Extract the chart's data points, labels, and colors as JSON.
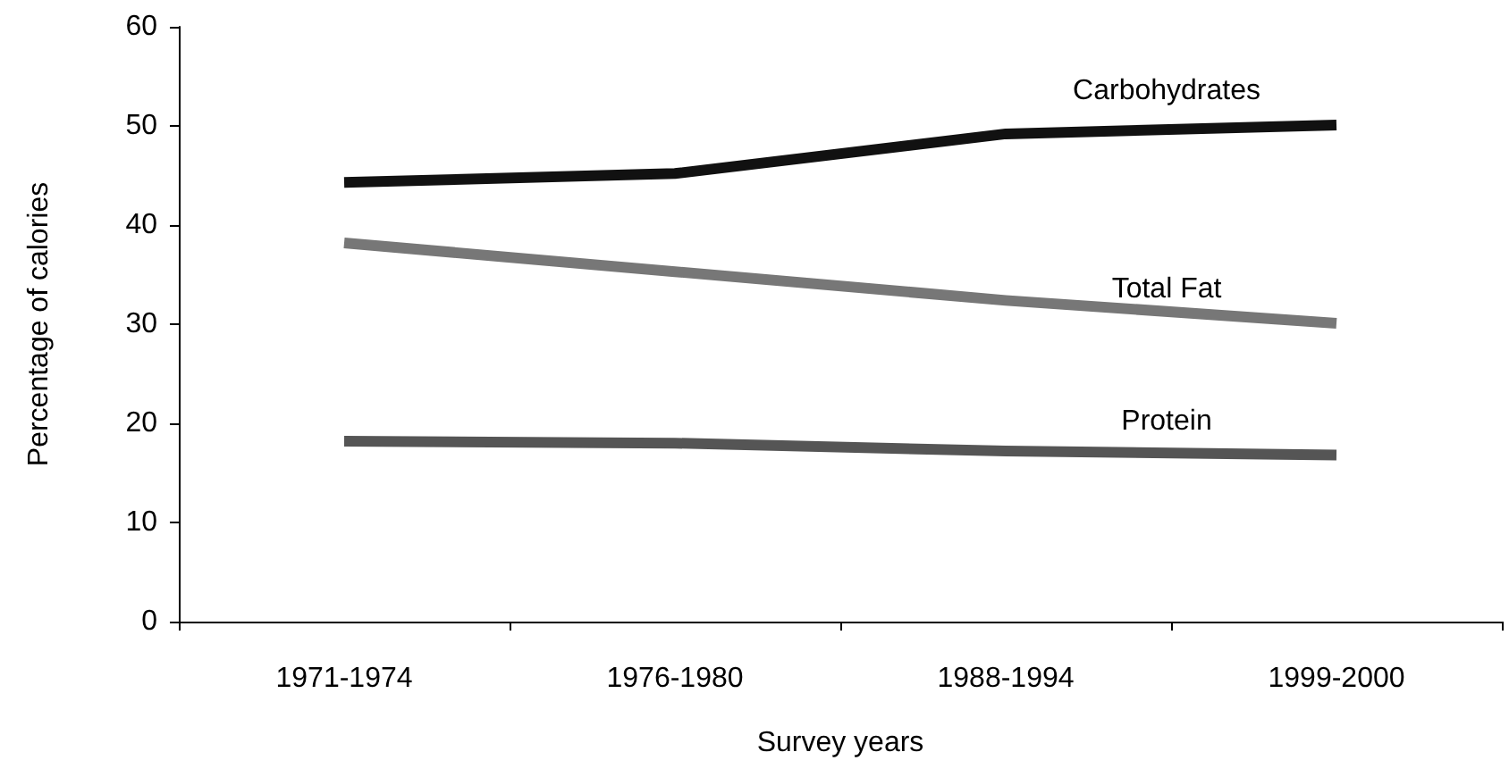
{
  "chart_data": {
    "type": "line",
    "xlabel": "Survey years",
    "ylabel": "Percentage of calories",
    "categories": [
      "1971-1974",
      "1976-1980",
      "1988-1994",
      "1999-2000"
    ],
    "series": [
      {
        "name": "Carbohydrates",
        "color": "#111111",
        "values": [
          44.3,
          45.2,
          49.2,
          50.1
        ]
      },
      {
        "name": "Total Fat",
        "color": "#777777",
        "values": [
          38.2,
          35.3,
          32.4,
          30.1
        ]
      },
      {
        "name": "Protein",
        "color": "#555555",
        "values": [
          18.2,
          18.0,
          17.2,
          16.8
        ]
      }
    ],
    "ylim": [
      0,
      60
    ],
    "yticks": [
      0,
      10,
      20,
      30,
      40,
      50,
      60
    ],
    "grid": false,
    "legend": false,
    "marker": "none",
    "line_style": "solid"
  }
}
